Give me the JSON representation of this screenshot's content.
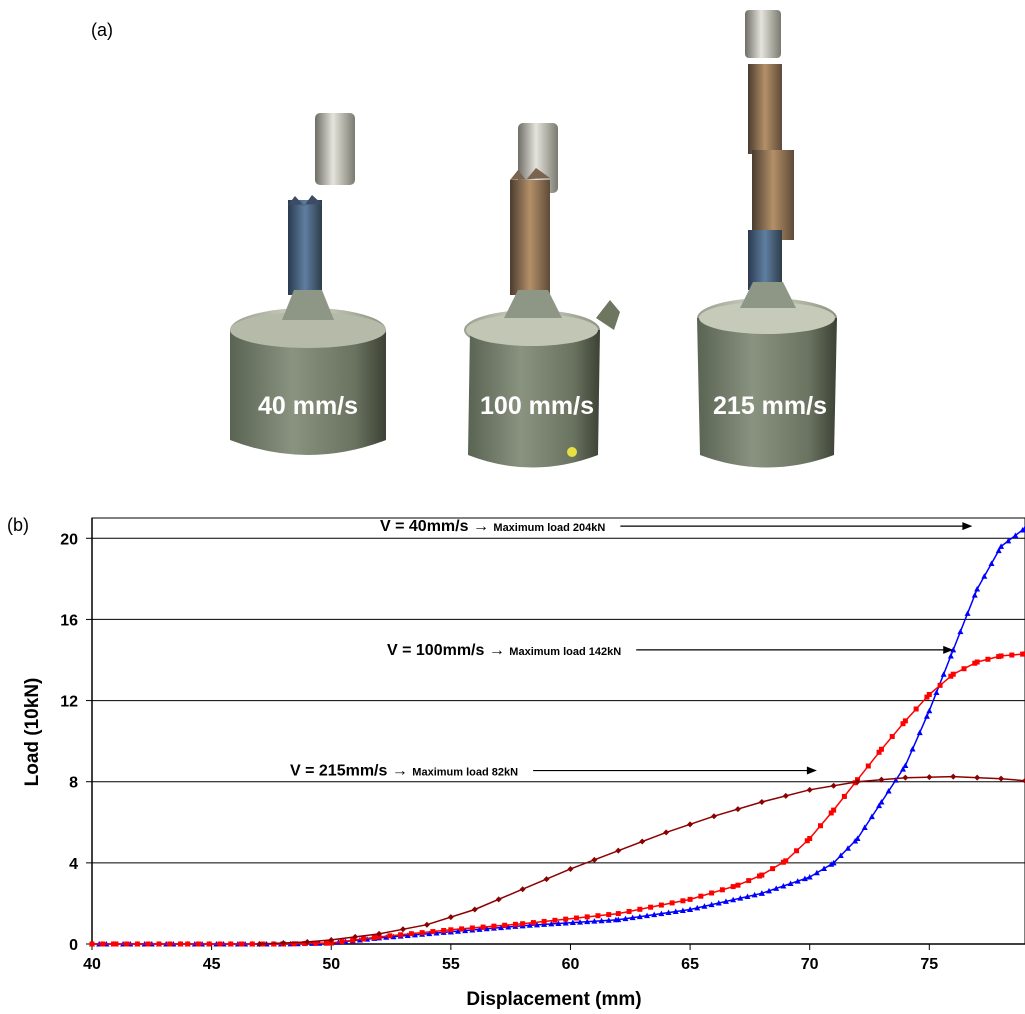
{
  "panel_a_label": "(a)",
  "panel_b_label": "(b)",
  "photo": {
    "specimens": [
      {
        "label": "40 mm/s"
      },
      {
        "label": "100 mm/s"
      },
      {
        "label": "215 mm/s"
      }
    ]
  },
  "chart_data": {
    "type": "line",
    "xlabel": "Displacement (mm)",
    "ylabel": "Load (10kN)",
    "xlim": [
      40,
      79
    ],
    "ylim": [
      0,
      21
    ],
    "xticks": [
      40,
      45,
      50,
      55,
      60,
      65,
      70,
      75
    ],
    "yticks": [
      0,
      4,
      8,
      12,
      16,
      20
    ],
    "grid": "horizontal",
    "series": [
      {
        "name": "V = 40mm/s",
        "color": "#0000ff",
        "marker": "triangle",
        "x": [
          40,
          41,
          48,
          50,
          52,
          55,
          58,
          62,
          65,
          68,
          70,
          71,
          72,
          73,
          74,
          75,
          76,
          77,
          78,
          79
        ],
        "y": [
          0,
          0,
          0,
          0.05,
          0.3,
          0.6,
          0.9,
          1.2,
          1.7,
          2.5,
          3.3,
          4.0,
          5.2,
          7.0,
          8.8,
          11.5,
          14.5,
          17.5,
          19.6,
          20.5
        ]
      },
      {
        "name": "V = 100mm/s",
        "color": "#ff0000",
        "marker": "square",
        "x": [
          40,
          41,
          44,
          48,
          50,
          52,
          55,
          58,
          62,
          65,
          67,
          68,
          69,
          70,
          71,
          72,
          73,
          74,
          75,
          76,
          77,
          78,
          79
        ],
        "y": [
          0,
          0,
          0,
          0,
          0.05,
          0.35,
          0.7,
          1.0,
          1.5,
          2.2,
          2.9,
          3.4,
          4.1,
          5.2,
          6.6,
          8.1,
          9.6,
          11.0,
          12.3,
          13.3,
          13.9,
          14.2,
          14.3
        ]
      },
      {
        "name": "V = 215mm/s",
        "color": "#8b0000",
        "marker": "diamond",
        "x": [
          47,
          48,
          49,
          50,
          52,
          54,
          56,
          58,
          60,
          62,
          64,
          66,
          68,
          70,
          72,
          74,
          76,
          78,
          79
        ],
        "y": [
          0,
          0.05,
          0.1,
          0.2,
          0.5,
          0.95,
          1.7,
          2.7,
          3.7,
          4.6,
          5.5,
          6.3,
          7.0,
          7.6,
          8.0,
          8.2,
          8.25,
          8.15,
          8.05
        ]
      }
    ],
    "annotations": [
      {
        "speed": "V = 40mm/s",
        "arrow": "→",
        "text": "Maximum load 204kN",
        "y_level": 20.6,
        "arrow_to_x": 76.8
      },
      {
        "speed": "V = 100mm/s",
        "arrow": "→",
        "text": "Maximum load 142kN",
        "y_level": 14.5,
        "arrow_to_x": 76.0
      },
      {
        "speed": "V = 215mm/s",
        "arrow": "→",
        "text": "Maximum load 82kN",
        "y_level": 8.55,
        "arrow_to_x": 70.3
      }
    ]
  }
}
